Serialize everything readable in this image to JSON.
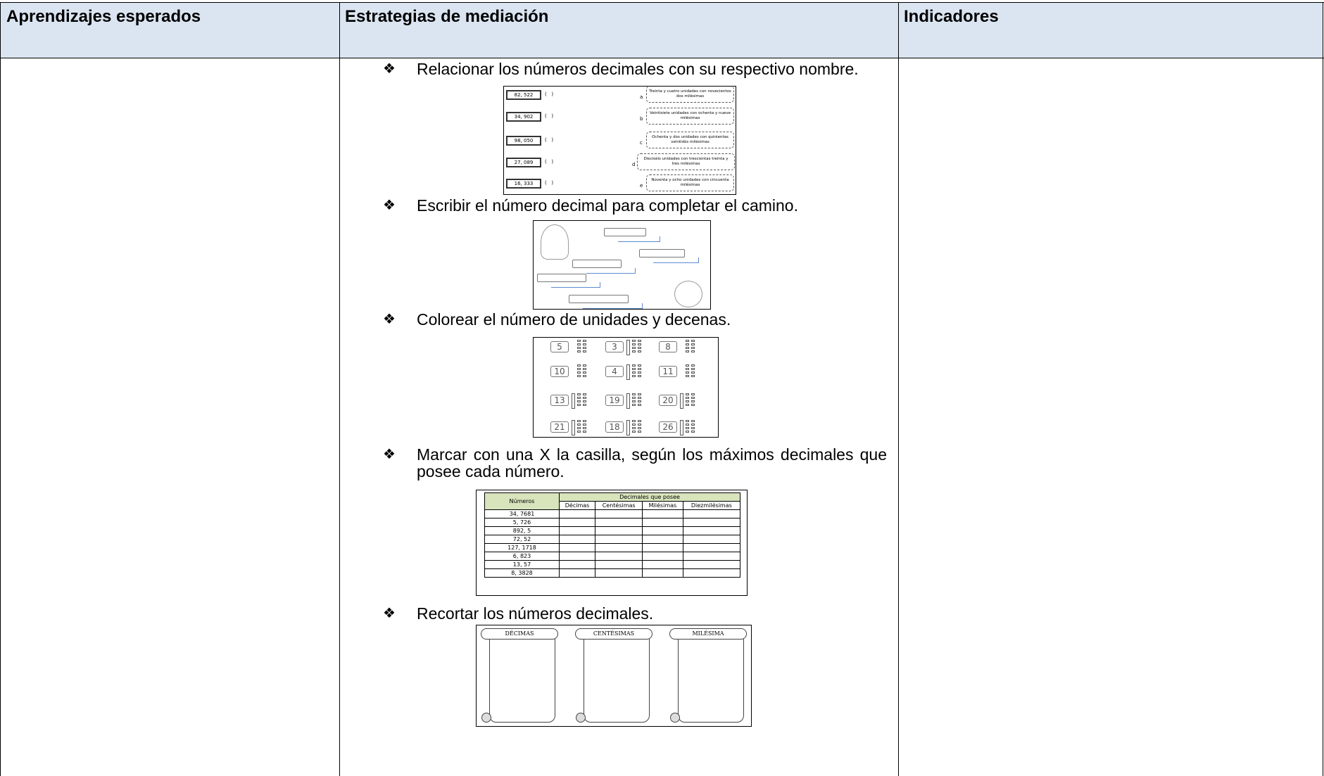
{
  "table": {
    "headers": [
      "Aprendizajes esperados",
      "Estrategias de mediación",
      "Indicadores"
    ],
    "strategies": [
      {
        "text": "Relacionar los números decimales con su respectivo nombre.",
        "figure": {
          "numbers": [
            "82, 522",
            "34, 902",
            "98, 050",
            "27, 089",
            "16, 333"
          ],
          "blank": "(   )",
          "letters": [
            "a",
            "b",
            "c",
            "d",
            "e"
          ],
          "phrases": [
            "Treinta y cuatro unidades con novecientos dos milésimas",
            "Veintisiete unidades con ochenta y nueve milésimas",
            "Ochenta y dos unidades con quinientas veintidós milésimas",
            "Dieciséis unidades con trescientas treinta y tres milésimas",
            "Noventa y ocho unidades con cincuenta milésimas"
          ]
        }
      },
      {
        "text": "Escribir el número decimal para completar el camino."
      },
      {
        "text": "Colorear el número de unidades y decenas.",
        "figure": {
          "numbers": [
            "5",
            "3",
            "8",
            "10",
            "4",
            "11",
            "13",
            "19",
            "20",
            "21",
            "18",
            "26"
          ]
        }
      },
      {
        "text": "Marcar con una X la casilla, según los máximos decimales que posee cada número.",
        "figure": {
          "header": "Números",
          "group": "Decimales que posee",
          "columns": [
            "Décimas",
            "Centésimas",
            "Milésimas",
            "Diezmilésimas"
          ],
          "rows": [
            "34, 7681",
            "5, 726",
            "892, 5",
            "72, 52",
            "127, 1718",
            "6, 823",
            "13, 57",
            "8, 3828"
          ]
        }
      },
      {
        "text": "Recortar los números decimales.",
        "figure": {
          "labels": [
            "DÉCIMAS",
            "CENTÉSIMAS",
            "MILÉSIMA"
          ]
        }
      }
    ]
  }
}
